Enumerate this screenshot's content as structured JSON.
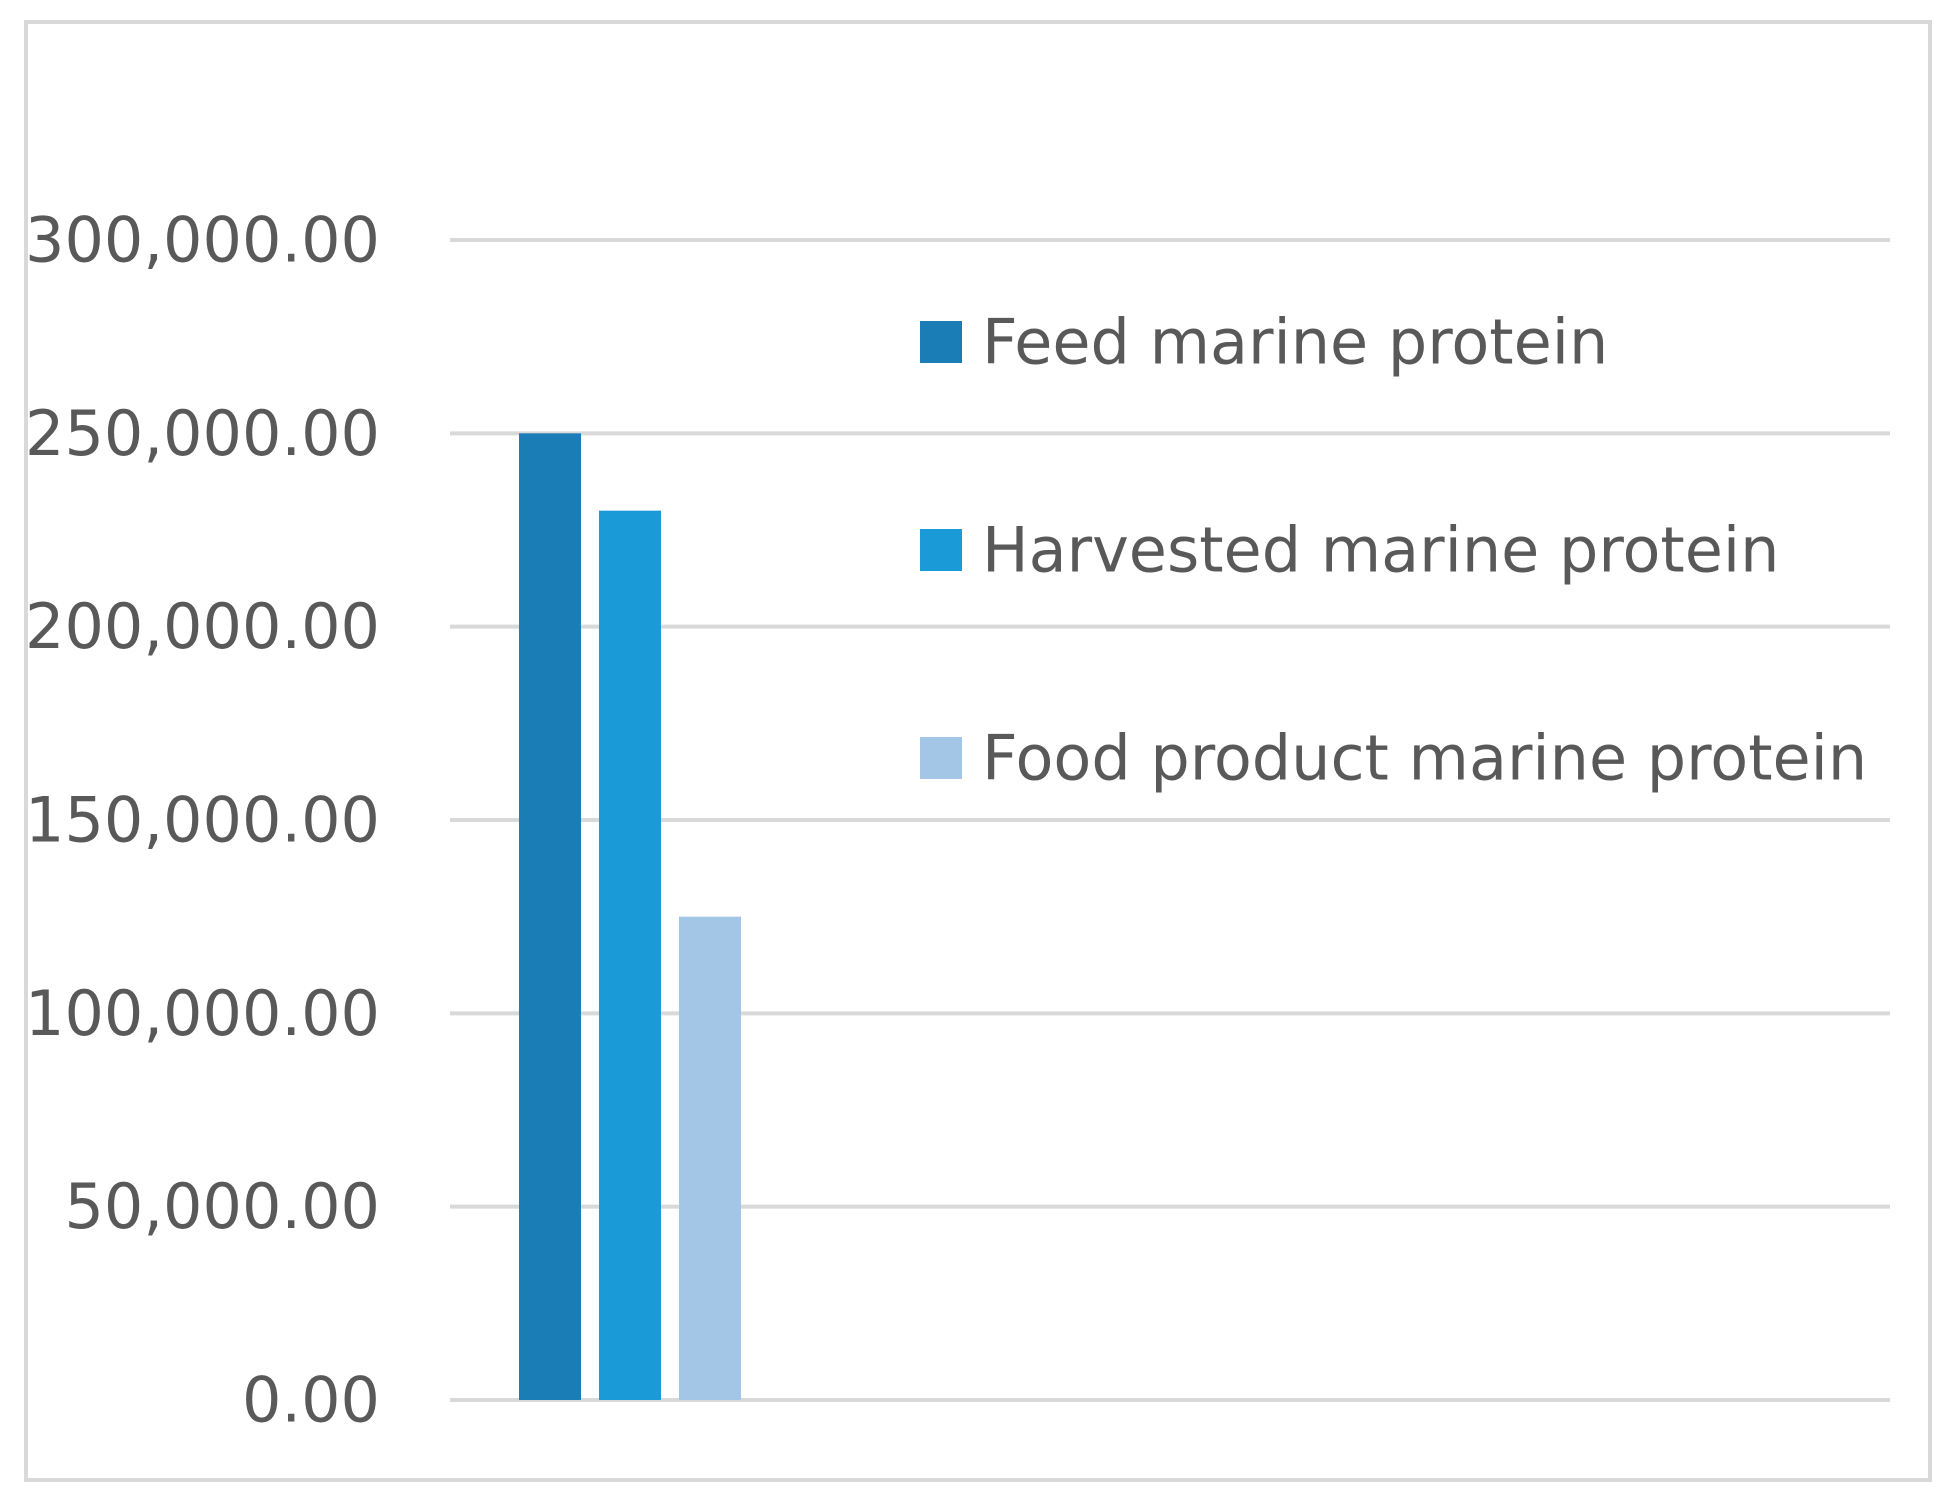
{
  "chart_data": {
    "type": "bar",
    "categories": [
      ""
    ],
    "series": [
      {
        "name": "Feed marine protein",
        "values": [
          250000
        ],
        "color": "#1a7db5"
      },
      {
        "name": "Harvested marine protein",
        "values": [
          230000
        ],
        "color": "#1a9ad6"
      },
      {
        "name": "Food product marine protein",
        "values": [
          125000
        ],
        "color": "#a3c6e7"
      }
    ],
    "ylim": [
      0,
      300000
    ],
    "yticks": [
      {
        "value": 0,
        "label": "0.00"
      },
      {
        "value": 50000,
        "label": "50,000.00"
      },
      {
        "value": 100000,
        "label": "100,000.00"
      },
      {
        "value": 150000,
        "label": "150,000.00"
      },
      {
        "value": 200000,
        "label": "200,000.00"
      },
      {
        "value": 250000,
        "label": "250,000.00"
      },
      {
        "value": 300000,
        "label": "300,000.00"
      }
    ],
    "grid": true,
    "gridline_color": "#d9d9d9",
    "axis_label_color": "#595959",
    "legend_position": "right"
  }
}
